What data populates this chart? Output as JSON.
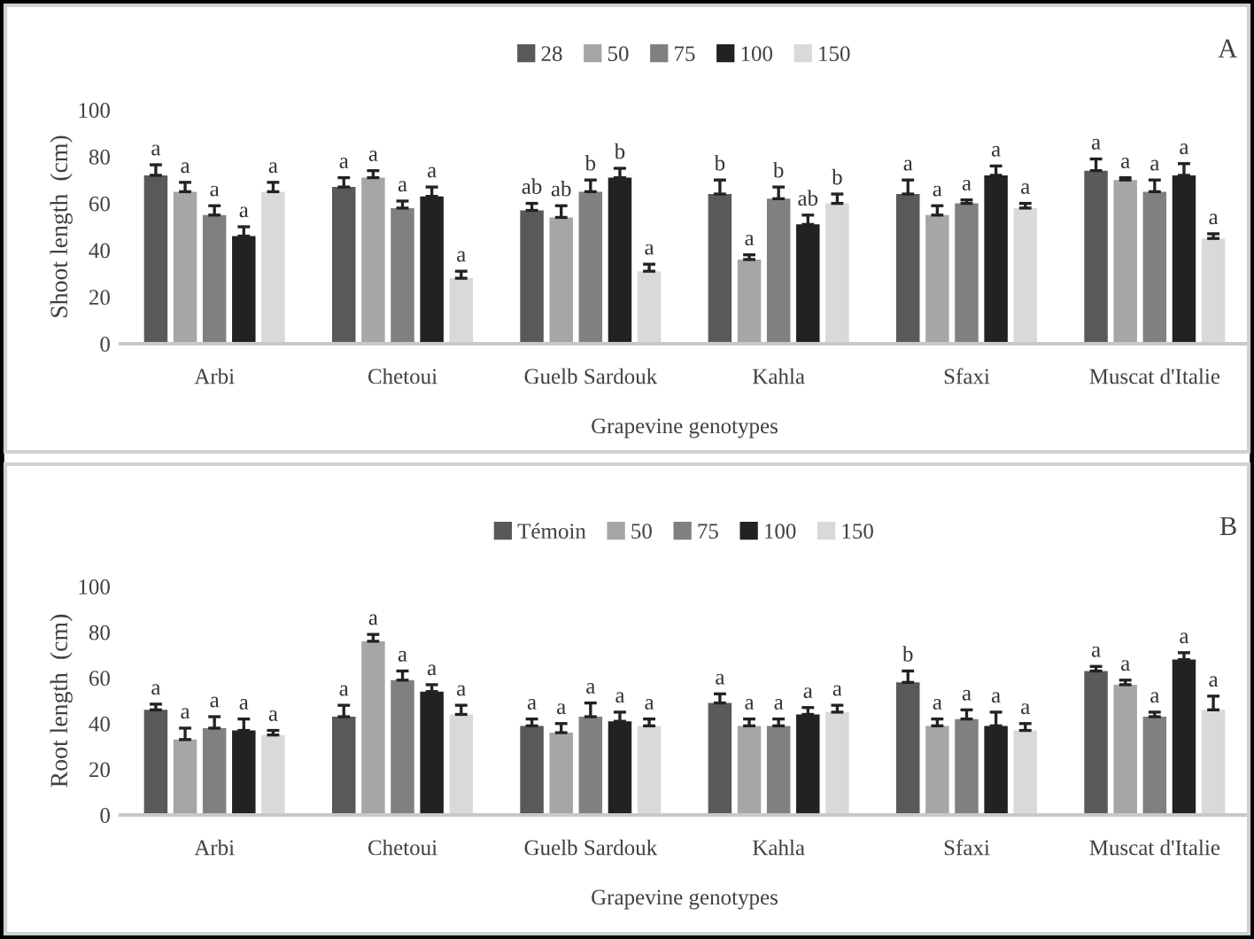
{
  "chart_data": [
    {
      "type": "bar",
      "ylabel": "Shoot length  (cm)",
      "xlabel": "Grapevine genotypes",
      "annotations": [
        "A"
      ],
      "legend": "top",
      "grid": false,
      "ylim": [
        0,
        100
      ],
      "yticks": [
        0,
        20,
        40,
        60,
        80,
        100
      ],
      "categories": [
        "Arbi",
        "Chetoui",
        "Guelb Sardouk",
        "Kahla",
        "Sfaxi",
        "Muscat d'Italie"
      ],
      "series": [
        {
          "name": "28",
          "color": "#595959",
          "values": [
            72,
            67,
            57,
            64,
            64,
            74
          ],
          "errors": [
            4.5,
            4,
            3,
            6,
            6,
            5
          ],
          "value_labels": [
            "a",
            "a",
            "ab",
            "b",
            "a",
            "a"
          ]
        },
        {
          "name": "50",
          "color": "#a6a6a6",
          "values": [
            65,
            71,
            54,
            36,
            55,
            70
          ],
          "errors": [
            4,
            3,
            5,
            2,
            4,
            1
          ],
          "value_labels": [
            "a",
            "a",
            "ab",
            "a",
            "a",
            "a"
          ]
        },
        {
          "name": "75",
          "color": "#808080",
          "values": [
            55,
            58,
            65,
            62,
            60,
            65
          ],
          "errors": [
            4,
            3,
            5,
            5,
            1.5,
            5
          ],
          "value_labels": [
            "a",
            "a",
            "b",
            "b",
            "a",
            "a"
          ]
        },
        {
          "name": "100",
          "color": "#222222",
          "values": [
            46,
            63,
            71,
            51,
            72,
            72
          ],
          "errors": [
            4,
            4,
            4,
            4,
            4,
            5
          ],
          "value_labels": [
            "a",
            "a",
            "b",
            "ab",
            "a",
            "a"
          ]
        },
        {
          "name": "150",
          "color": "#d9d9d9",
          "values": [
            65,
            28,
            31,
            60,
            58,
            45
          ],
          "errors": [
            4,
            3,
            3,
            4,
            2,
            2
          ],
          "value_labels": [
            "a",
            "a",
            "a",
            "b",
            "a",
            "a"
          ]
        }
      ]
    },
    {
      "type": "bar",
      "ylabel": "Root length  (cm)",
      "xlabel": "Grapevine genotypes",
      "annotations": [
        "B"
      ],
      "legend": "top",
      "grid": false,
      "ylim": [
        0,
        100
      ],
      "yticks": [
        0,
        20,
        40,
        60,
        80,
        100
      ],
      "categories": [
        "Arbi",
        "Chetoui",
        "Guelb Sardouk",
        "Kahla",
        "Sfaxi",
        "Muscat d'Italie"
      ],
      "series": [
        {
          "name": "Témoin",
          "color": "#595959",
          "values": [
            46,
            43,
            39,
            49,
            58,
            63
          ],
          "errors": [
            2.5,
            5,
            3,
            4,
            5,
            2
          ],
          "value_labels": [
            "a",
            "a",
            "a",
            "a",
            "b",
            "a"
          ]
        },
        {
          "name": "50",
          "color": "#a6a6a6",
          "values": [
            33,
            76,
            36,
            39,
            39,
            57
          ],
          "errors": [
            5,
            3,
            4,
            3,
            3,
            2
          ],
          "value_labels": [
            "a",
            "a",
            "a",
            "a",
            "a",
            "a"
          ]
        },
        {
          "name": "75",
          "color": "#808080",
          "values": [
            38,
            59,
            43,
            39,
            42,
            43
          ],
          "errors": [
            5,
            4,
            6,
            3,
            4,
            2
          ],
          "value_labels": [
            "a",
            "a",
            "a",
            "a",
            "a",
            "a"
          ]
        },
        {
          "name": "100",
          "color": "#222222",
          "values": [
            37,
            54,
            41,
            44,
            39,
            68
          ],
          "errors": [
            5,
            3,
            4,
            3,
            6,
            3
          ],
          "value_labels": [
            "a",
            "a",
            "a",
            "a",
            "a",
            "a"
          ]
        },
        {
          "name": "150",
          "color": "#d9d9d9",
          "values": [
            35,
            44,
            39,
            45,
            37,
            46
          ],
          "errors": [
            2,
            4,
            3,
            3,
            3,
            6
          ],
          "value_labels": [
            "a",
            "a",
            "a",
            "a",
            "a",
            "a"
          ]
        }
      ]
    }
  ]
}
